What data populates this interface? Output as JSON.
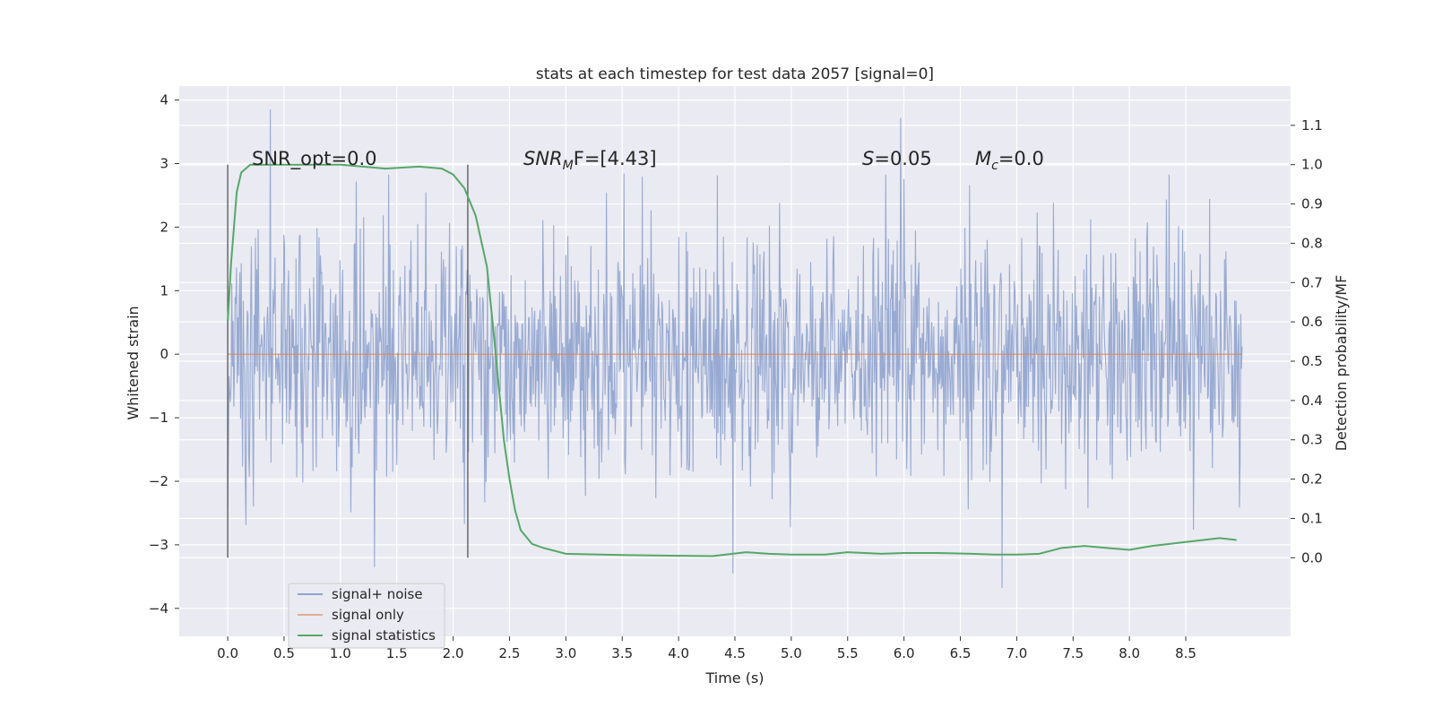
{
  "chart_data": {
    "type": "line",
    "title": "stats at each timestep for test data 2057 [signal=0]",
    "xlabel": "Time (s)",
    "ylabel_left": "Whitened strain",
    "ylabel_right": "Detection probability/MF",
    "xlim": [
      -0.43,
      9.43
    ],
    "ylim_left": [
      -4.44,
      4.22
    ],
    "ylim_right": [
      -0.2,
      1.2
    ],
    "x_ticks": [
      "0.0",
      "0.5",
      "1.0",
      "1.5",
      "2.0",
      "2.5",
      "3.0",
      "3.5",
      "4.0",
      "4.5",
      "5.0",
      "5.5",
      "6.0",
      "6.5",
      "7.0",
      "7.5",
      "8.0",
      "8.5"
    ],
    "y_left_ticks": [
      "4",
      "3",
      "2",
      "1",
      "0",
      "−1",
      "−2",
      "−3",
      "−4"
    ],
    "y_right_ticks": [
      "1.1",
      "1.0",
      "0.9",
      "0.8",
      "0.7",
      "0.6",
      "0.5",
      "0.4",
      "0.3",
      "0.2",
      "0.1",
      "0.0"
    ],
    "grid": true,
    "background": "#EAEAF2",
    "annotations": {
      "snr_opt": "SNR_opt=0.0",
      "snr_mf_base": "SNR",
      "snr_mf_sub": "M",
      "snr_mf_rest": "F=[4.43]",
      "s_var": "S",
      "s_rest": "=0.05",
      "mc_var": "M",
      "mc_sub": "c",
      "mc_rest": "=0.0"
    },
    "vertical_markers": [
      0.0,
      2.13
    ],
    "legend_position": "lower-left",
    "series": [
      {
        "name": "signal+ noise",
        "color": "#8FA3CE",
        "axis": "left",
        "x_range": [
          0.0,
          9.0
        ],
        "typical_envelope": [
          -2.0,
          2.3
        ],
        "extremes": [
          {
            "x": 0.38,
            "y": 3.85
          },
          {
            "x": 1.3,
            "y": -3.35
          },
          {
            "x": 4.48,
            "y": -3.45
          },
          {
            "x": 5.97,
            "y": 3.72
          },
          {
            "x": 6.87,
            "y": -3.68
          }
        ]
      },
      {
        "name": "signal only",
        "color": "#DD8452",
        "axis": "left",
        "x": [
          0.0,
          9.0
        ],
        "y": [
          0.0,
          0.0
        ]
      },
      {
        "name": "signal statistics",
        "color": "#55A868",
        "axis": "right",
        "x": [
          0.0,
          0.03,
          0.08,
          0.12,
          0.2,
          0.3,
          0.5,
          0.8,
          1.0,
          1.2,
          1.4,
          1.7,
          1.9,
          2.0,
          2.1,
          2.2,
          2.3,
          2.35,
          2.4,
          2.45,
          2.5,
          2.55,
          2.6,
          2.7,
          2.8,
          3.0,
          3.5,
          4.0,
          4.3,
          4.6,
          4.8,
          5.0,
          5.3,
          5.5,
          5.8,
          6.0,
          6.3,
          6.6,
          6.8,
          7.0,
          7.2,
          7.4,
          7.6,
          7.8,
          8.0,
          8.2,
          8.5,
          8.8,
          8.95
        ],
        "y": [
          0.6,
          0.75,
          0.93,
          0.98,
          1.0,
          1.0,
          1.0,
          1.0,
          1.0,
          0.995,
          0.99,
          0.995,
          0.99,
          0.975,
          0.94,
          0.87,
          0.74,
          0.6,
          0.45,
          0.3,
          0.2,
          0.12,
          0.07,
          0.035,
          0.025,
          0.01,
          0.007,
          0.005,
          0.004,
          0.014,
          0.01,
          0.008,
          0.008,
          0.014,
          0.01,
          0.012,
          0.012,
          0.01,
          0.008,
          0.008,
          0.01,
          0.025,
          0.03,
          0.025,
          0.02,
          0.03,
          0.04,
          0.05,
          0.045
        ]
      }
    ]
  }
}
